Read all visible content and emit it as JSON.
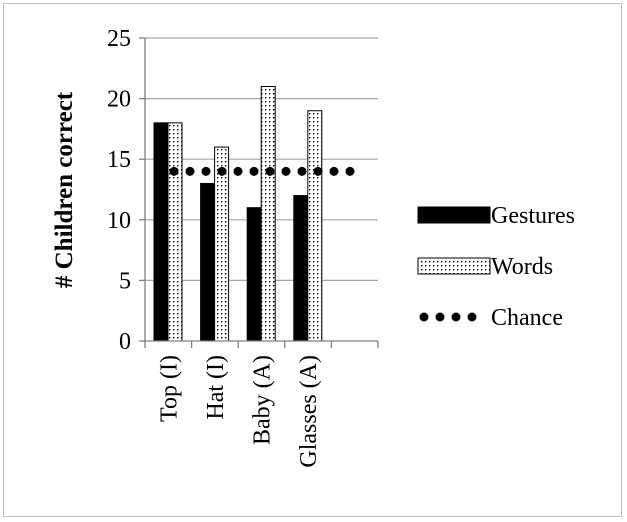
{
  "chart_data": {
    "type": "bar",
    "categories": [
      "Top (I)",
      "Hat (I)",
      "Baby (A)",
      "Glasses (A)"
    ],
    "series": [
      {
        "name": "Gestures",
        "values": [
          18,
          13,
          11,
          12
        ],
        "color": "#000000",
        "pattern": "solid"
      },
      {
        "name": "Words",
        "values": [
          18,
          16,
          21,
          19
        ],
        "color": "#000000",
        "pattern": "dotted"
      }
    ],
    "reference_line": {
      "name": "Chance",
      "value": 14,
      "style": "dotted"
    },
    "title": "",
    "xlabel": "",
    "ylabel": "# Children correct",
    "ylim": [
      0,
      25
    ],
    "yticks": [
      0,
      5,
      10,
      15,
      20,
      25
    ],
    "grid": "horizontal",
    "legend": "right"
  }
}
